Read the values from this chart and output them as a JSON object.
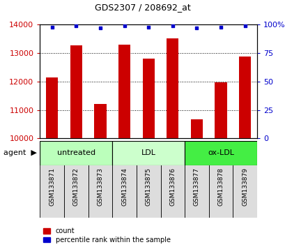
{
  "title": "GDS2307 / 208692_at",
  "samples": [
    "GSM133871",
    "GSM133872",
    "GSM133873",
    "GSM133874",
    "GSM133875",
    "GSM133876",
    "GSM133877",
    "GSM133878",
    "GSM133879"
  ],
  "counts": [
    12150,
    13280,
    11220,
    13290,
    12800,
    13530,
    10680,
    11970,
    12880
  ],
  "percentiles": [
    98,
    99,
    97,
    99,
    98,
    99,
    97,
    98,
    99
  ],
  "ylim_left": [
    10000,
    14000
  ],
  "ylim_right": [
    0,
    100
  ],
  "yticks_left": [
    10000,
    11000,
    12000,
    13000,
    14000
  ],
  "yticks_right": [
    0,
    25,
    50,
    75,
    100
  ],
  "bar_color": "#cc0000",
  "percentile_color": "#0000cc",
  "groups": [
    {
      "label": "untreated",
      "indices": [
        0,
        1,
        2
      ],
      "color": "#bbffbb"
    },
    {
      "label": "LDL",
      "indices": [
        3,
        4,
        5
      ],
      "color": "#ccffcc"
    },
    {
      "label": "ox-LDL",
      "indices": [
        6,
        7,
        8
      ],
      "color": "#44ee44"
    }
  ],
  "legend_items": [
    {
      "label": "count",
      "color": "#cc0000"
    },
    {
      "label": "percentile rank within the sample",
      "color": "#0000cc"
    }
  ],
  "agent_label": "agent",
  "background_color": "#ffffff",
  "plot_bg": "#ffffff",
  "sample_box_color": "#dddddd",
  "bar_width": 0.5,
  "ylabel_left_color": "#cc0000",
  "ylabel_right_color": "#0000cc"
}
